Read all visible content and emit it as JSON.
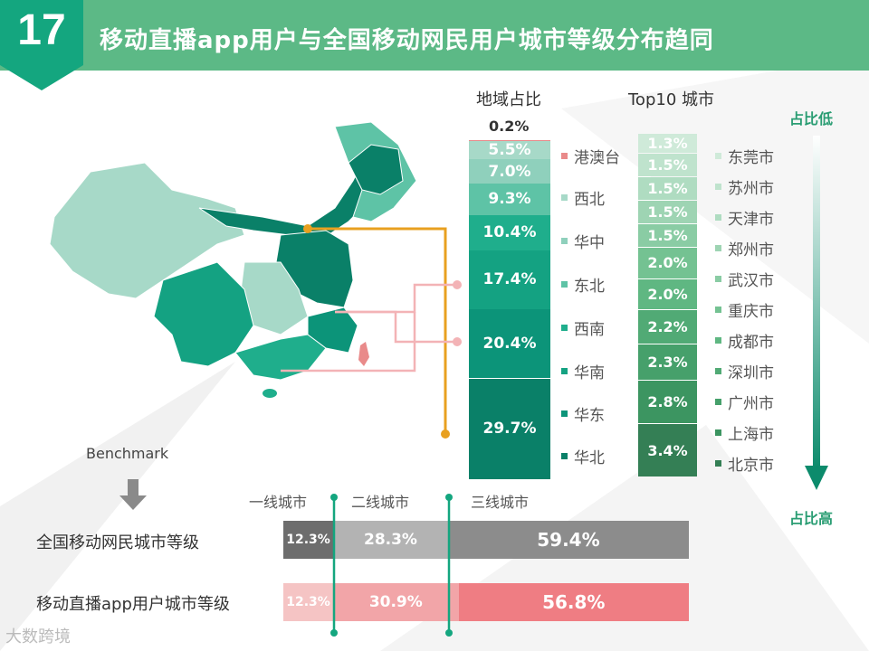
{
  "header": {
    "number": "17",
    "title": "移动直播app用户与全国移动网民用户城市等级分布趋同"
  },
  "colors": {
    "header_bg": "#5cb986",
    "number_tab": "#14a67f",
    "accent": "#2a9d73",
    "orange": "#e8a020",
    "pink": "#f3b3b6"
  },
  "region_column": {
    "header": "地域占比",
    "top_value": "0.2%"
  },
  "top10_column": {
    "header": "Top10 城市"
  },
  "arrow": {
    "top_label": "占比低",
    "bottom_label": "占比高"
  },
  "benchmark": {
    "label": "Benchmark",
    "tier_headers": [
      "一线城市",
      "二线城市",
      "三线城市"
    ],
    "rows": [
      {
        "label": "全国移动网民城市等级",
        "values": [
          "12.3%",
          "28.3%",
          "59.4%"
        ]
      },
      {
        "label": "移动直播app用户城市等级",
        "values": [
          "12.3%",
          "30.9%",
          "56.8%"
        ]
      }
    ]
  },
  "watermark": "大数跨境",
  "chart_data": [
    {
      "type": "bar",
      "title": "地域占比",
      "stacked": true,
      "categories": [
        "港澳台",
        "西北",
        "华中",
        "东北",
        "西南",
        "华南",
        "华东",
        "华北"
      ],
      "values": [
        0.2,
        5.5,
        7.0,
        9.3,
        10.4,
        17.4,
        20.4,
        29.7
      ],
      "labels": [
        "0.2%",
        "5.5%",
        "7.0%",
        "9.3%",
        "10.4%",
        "17.4%",
        "20.4%",
        "29.7%"
      ],
      "colors": [
        "#e98a8a",
        "#a7d9c8",
        "#8fd0bc",
        "#5ec3a6",
        "#1fae8c",
        "#14a282",
        "#0c9479",
        "#0a8068"
      ]
    },
    {
      "type": "bar",
      "title": "Top10 城市",
      "stacked": true,
      "categories": [
        "东莞市",
        "苏州市",
        "天津市",
        "郑州市",
        "武汉市",
        "重庆市",
        "成都市",
        "深圳市",
        "广州市",
        "上海市",
        "北京市"
      ],
      "values": [
        1.3,
        1.5,
        1.5,
        1.5,
        1.5,
        2.0,
        2.0,
        2.2,
        2.3,
        2.8,
        3.4
      ],
      "labels": [
        "1.3%",
        "1.5%",
        "1.5%",
        "1.5%",
        "1.5%",
        "2.0%",
        "2.0%",
        "2.2%",
        "2.3%",
        "2.8%",
        "3.4%"
      ],
      "colors": [
        "#cfead9",
        "#bfe3cd",
        "#afdcc1",
        "#9ed4b3",
        "#8acca4",
        "#74c292",
        "#5fb782",
        "#51aa75",
        "#46a06b",
        "#3c9561",
        "#347f55"
      ]
    },
    {
      "type": "bar",
      "orientation": "horizontal",
      "stacked": true,
      "categories": [
        "全国移动网民城市等级",
        "移动直播app用户城市等级"
      ],
      "series": [
        {
          "name": "一线城市",
          "values": [
            12.3,
            12.3
          ]
        },
        {
          "name": "二线城市",
          "values": [
            28.3,
            30.9
          ]
        },
        {
          "name": "三线城市",
          "values": [
            59.4,
            56.8
          ]
        }
      ],
      "colors": [
        [
          "#6d6d6d",
          "#b3b3b3",
          "#8c8c8c"
        ],
        [
          "#f5c4c4",
          "#f2a5a8",
          "#ef7d83"
        ]
      ]
    }
  ]
}
